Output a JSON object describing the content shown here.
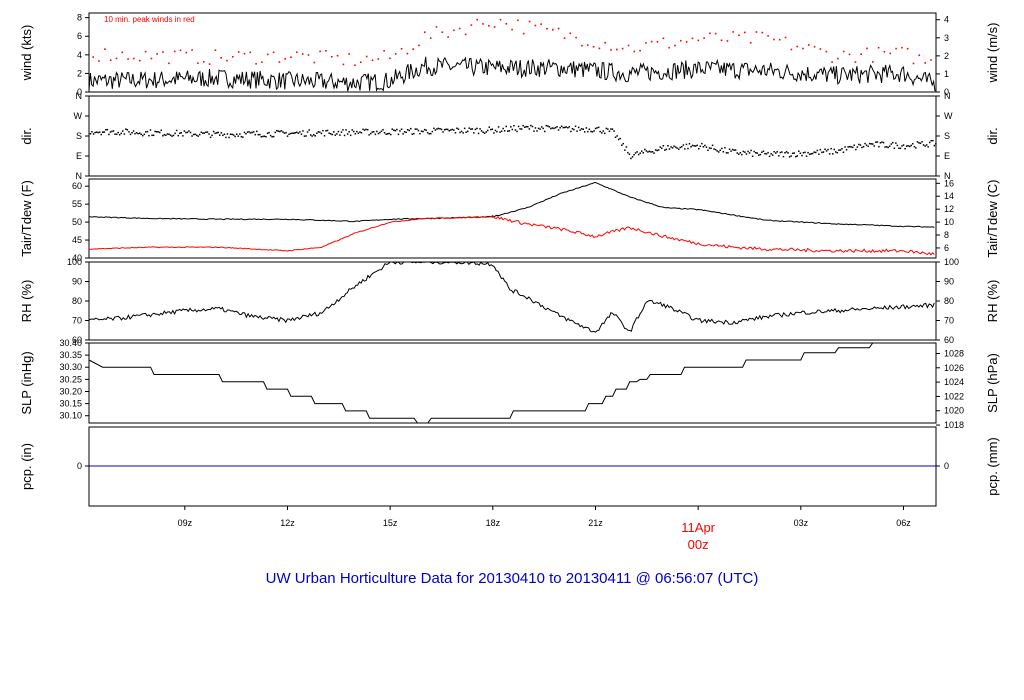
{
  "title": "UW Urban Horticulture Data for 20130410  to  20130411 @ 06:56:07  (UTC)",
  "colors": {
    "title": "#0000cc",
    "peak": "#ff0000",
    "dew": "#ff0000",
    "precip": "#0000cc",
    "date_label": "#ff0000",
    "frame": "#000000"
  },
  "x_axis": {
    "tick_labels": [
      "09z",
      "12z",
      "15z",
      "18z",
      "21z",
      "00z",
      "03z",
      "06z"
    ],
    "date_label": "11Apr",
    "date_label_hour": "00z",
    "range_hours": [
      6.2,
      30.95
    ]
  },
  "panels": [
    {
      "id": "wind",
      "left_label": "wind (kts)",
      "right_label": "wind (m/s)",
      "left_ticks": [
        "0",
        "2",
        "4",
        "6",
        "8"
      ],
      "right_ticks": [
        "0",
        "1",
        "2",
        "3",
        "4"
      ],
      "annotation": "10 min. peak winds in red"
    },
    {
      "id": "dir",
      "left_label": "dir.",
      "right_label": "dir.",
      "left_ticks": [
        "N",
        "E",
        "S",
        "W",
        "N"
      ],
      "right_ticks": [
        "N",
        "E",
        "S",
        "W",
        "N"
      ]
    },
    {
      "id": "temp",
      "left_label": "Tair/Tdew (F)",
      "right_label": "Tair/Tdew (C)",
      "left_ticks": [
        "40",
        "45",
        "50",
        "55",
        "60"
      ],
      "right_ticks": [
        "6",
        "8",
        "10",
        "12",
        "14",
        "16"
      ]
    },
    {
      "id": "rh",
      "left_label": "RH (%)",
      "right_label": "RH (%)",
      "left_ticks": [
        "60",
        "70",
        "80",
        "90",
        "100"
      ],
      "right_ticks": [
        "60",
        "70",
        "80",
        "90",
        "100"
      ]
    },
    {
      "id": "slp",
      "left_label": "SLP (inHg)",
      "right_label": "SLP (hPa)",
      "left_ticks": [
        "30.10",
        "30.15",
        "30.20",
        "30.25",
        "30.30",
        "30.35",
        "30.40"
      ],
      "right_ticks": [
        "1018",
        "1020",
        "1022",
        "1024",
        "1026",
        "1028"
      ]
    },
    {
      "id": "pcp",
      "left_label": "pcp. (in)",
      "right_label": "pcp. (mm)",
      "left_ticks": [
        "0"
      ],
      "right_ticks": [
        "0"
      ]
    }
  ],
  "chart_data": [
    {
      "type": "line",
      "panel": "wind",
      "xlabel": "",
      "ylabel": "wind (kts)",
      "ylim": [
        0,
        8.5
      ],
      "x": [
        6.2,
        8,
        10,
        12,
        14,
        15,
        16,
        18,
        20,
        22,
        24,
        26,
        28,
        30,
        30.95
      ],
      "series": [
        {
          "name": "wind",
          "values": [
            1.2,
            1.3,
            1.5,
            1.2,
            1.0,
            1.2,
            2.8,
            2.6,
            2.6,
            2.0,
            2.5,
            2.3,
            1.8,
            2.0,
            0.8
          ]
        },
        {
          "name": "10 min. peak winds",
          "values": [
            4.2,
            4.0,
            3.8,
            4.0,
            3.5,
            3.8,
            6.0,
            7.8,
            6.3,
            4.8,
            5.8,
            5.8,
            4.0,
            4.2,
            3.0
          ]
        }
      ]
    },
    {
      "type": "scatter",
      "panel": "dir",
      "xlabel": "",
      "ylabel": "dir.",
      "x": [
        6.2,
        8,
        10,
        12,
        14,
        16,
        18,
        19,
        20,
        21,
        21.5,
        22,
        23,
        24,
        25,
        26,
        27,
        28,
        29,
        30,
        30.95
      ],
      "series": [
        {
          "name": "dir",
          "values": [
            205,
            198,
            190,
            195,
            200,
            205,
            210,
            220,
            215,
            215,
            200,
            95,
            130,
            140,
            110,
            100,
            105,
            115,
            145,
            140,
            150
          ]
        }
      ]
    },
    {
      "type": "line",
      "panel": "temp",
      "xlabel": "",
      "ylabel": "Tair/Tdew (F)",
      "ylim": [
        40,
        62
      ],
      "x": [
        6.2,
        8,
        10,
        12,
        13,
        14,
        15,
        16,
        17,
        18,
        19,
        20,
        21,
        22,
        23,
        24,
        25,
        26,
        27,
        28,
        29,
        30,
        30.95
      ],
      "series": [
        {
          "name": "Tair",
          "values": [
            51.5,
            51,
            50.8,
            50.8,
            50.5,
            50.2,
            50.8,
            51,
            51.2,
            51.5,
            54,
            58,
            61,
            57,
            54,
            53.5,
            52,
            50.5,
            50,
            49.5,
            49.2,
            48.8,
            48.6
          ]
        },
        {
          "name": "Tdew",
          "values": [
            42.5,
            43,
            43,
            42,
            43,
            47,
            50,
            51,
            51.2,
            51.5,
            49.5,
            48,
            46,
            48.5,
            46,
            44,
            43,
            42.5,
            42.2,
            42,
            42,
            42,
            41
          ]
        }
      ]
    },
    {
      "type": "line",
      "panel": "rh",
      "xlabel": "",
      "ylabel": "RH (%)",
      "ylim": [
        60,
        100
      ],
      "x": [
        6.2,
        7,
        8,
        9,
        10,
        11,
        12,
        13,
        14,
        15,
        16,
        17,
        18,
        18.5,
        19,
        20,
        20.5,
        21,
        21.5,
        22,
        22.5,
        23,
        24,
        25,
        26,
        27,
        28,
        29,
        30,
        30.95
      ],
      "series": [
        {
          "name": "RH",
          "values": [
            70,
            71,
            73,
            75,
            76,
            72,
            70,
            74,
            88,
            100,
            100,
            100,
            99,
            86,
            82,
            72,
            68,
            64,
            74,
            64,
            80,
            78,
            70,
            69,
            72,
            74,
            75,
            76,
            77,
            78
          ]
        }
      ]
    },
    {
      "type": "line",
      "panel": "slp",
      "xlabel": "",
      "ylabel": "SLP (inHg)",
      "ylim": [
        30.07,
        30.4
      ],
      "x": [
        6.2,
        6.6,
        8.0,
        8.1,
        10.0,
        10.1,
        11.3,
        11.4,
        12.0,
        12.1,
        12.7,
        12.8,
        13.6,
        13.7,
        14.3,
        14.4,
        15.7,
        15.8,
        16.1,
        16.2,
        18.5,
        18.6,
        20.7,
        20.8,
        21.2,
        21.3,
        21.5,
        21.6,
        21.9,
        22.0,
        22.2,
        22.3,
        22.5,
        22.6,
        23.5,
        23.6,
        25.3,
        25.4,
        27.0,
        27.1,
        28.0,
        28.1,
        29.0,
        29.1,
        30.95
      ],
      "series": [
        {
          "name": "SLP",
          "values": [
            30.33,
            30.3,
            30.3,
            30.27,
            30.27,
            30.24,
            30.24,
            30.21,
            30.21,
            30.18,
            30.18,
            30.15,
            30.15,
            30.12,
            30.12,
            30.09,
            30.09,
            30.07,
            30.07,
            30.09,
            30.09,
            30.12,
            30.12,
            30.15,
            30.15,
            30.18,
            30.18,
            30.21,
            30.21,
            30.24,
            30.24,
            30.25,
            30.25,
            30.27,
            30.27,
            30.3,
            30.3,
            30.33,
            30.33,
            30.36,
            30.36,
            30.38,
            30.38,
            30.4,
            30.4
          ]
        }
      ]
    },
    {
      "type": "line",
      "panel": "pcp",
      "xlabel": "",
      "ylabel": "pcp. (in)",
      "x": [
        6.2,
        30.95
      ],
      "series": [
        {
          "name": "pcp",
          "values": [
            0,
            0
          ]
        }
      ]
    }
  ]
}
